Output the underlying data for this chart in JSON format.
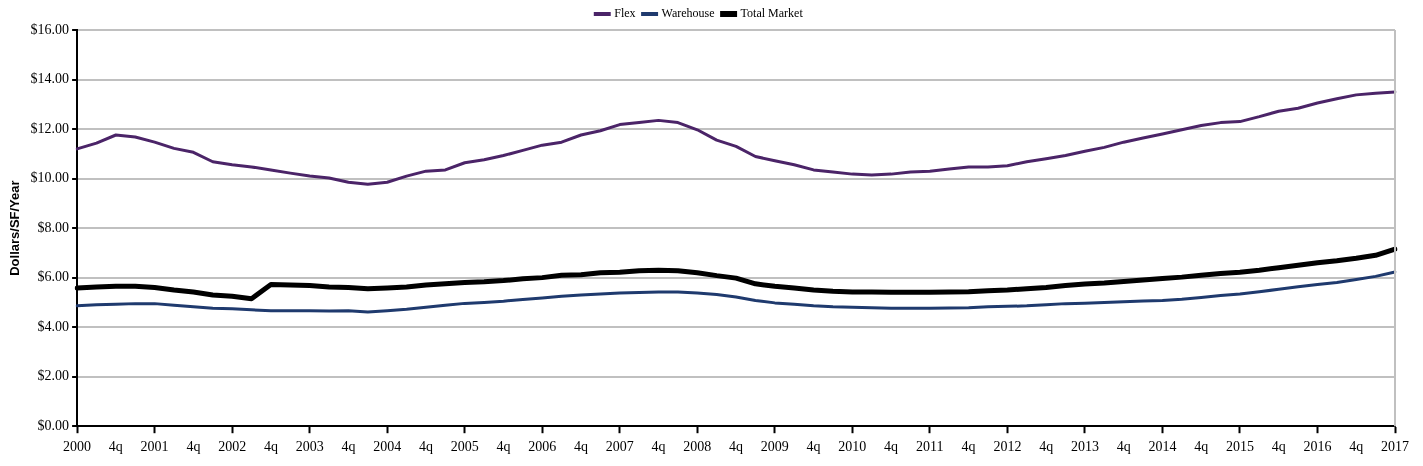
{
  "chart_data": {
    "type": "line",
    "ylabel": "Dollars/SF/Year",
    "categories": [
      "2000",
      null,
      "4q",
      null,
      "2001",
      null,
      "4q",
      null,
      "2002",
      null,
      "4q",
      null,
      "2003",
      null,
      "4q",
      null,
      "2004",
      null,
      "4q",
      null,
      "2005",
      null,
      "4q",
      null,
      "2006",
      null,
      "4q",
      null,
      "2007",
      null,
      "4q",
      null,
      "2008",
      null,
      "4q",
      null,
      "2009",
      null,
      "4q",
      null,
      "2010",
      null,
      "4q",
      null,
      "2011",
      null,
      "4q",
      null,
      "2012",
      null,
      "4q",
      null,
      "2013",
      null,
      "4q",
      null,
      "2014",
      null,
      "4q",
      null,
      "2015",
      null,
      "4q",
      null,
      "2016",
      null,
      "4q",
      null,
      "2017"
    ],
    "series": [
      {
        "name": "Flex",
        "color": "#4b2468",
        "values": [
          11.2,
          11.43,
          11.76,
          11.68,
          11.47,
          11.22,
          11.06,
          10.68,
          10.56,
          10.47,
          10.35,
          10.22,
          10.1,
          10.02,
          9.85,
          9.77,
          9.85,
          10.1,
          10.3,
          10.35,
          10.64,
          10.76,
          10.93,
          11.14,
          11.35,
          11.47,
          11.76,
          11.93,
          12.18,
          12.26,
          12.35,
          12.26,
          11.97,
          11.55,
          11.3,
          10.89,
          10.72,
          10.56,
          10.35,
          10.27,
          10.18,
          10.14,
          10.18,
          10.27,
          10.3,
          10.39,
          10.47,
          10.47,
          10.52,
          10.68,
          10.8,
          10.93,
          11.1,
          11.26,
          11.47,
          11.64,
          11.8,
          11.97,
          12.14,
          12.26,
          12.3,
          12.5,
          12.72,
          12.84,
          13.05,
          13.22,
          13.38,
          13.45,
          13.5
        ]
      },
      {
        "name": "Warehouse",
        "color": "#1f3a6e",
        "values": [
          4.86,
          4.9,
          4.92,
          4.95,
          4.95,
          4.88,
          4.82,
          4.76,
          4.74,
          4.7,
          4.66,
          4.66,
          4.66,
          4.65,
          4.66,
          4.61,
          4.66,
          4.72,
          4.8,
          4.88,
          4.96,
          5.0,
          5.05,
          5.12,
          5.18,
          5.25,
          5.3,
          5.34,
          5.38,
          5.4,
          5.42,
          5.42,
          5.38,
          5.32,
          5.22,
          5.08,
          4.98,
          4.92,
          4.86,
          4.82,
          4.8,
          4.78,
          4.76,
          4.76,
          4.76,
          4.77,
          4.78,
          4.82,
          4.84,
          4.86,
          4.9,
          4.95,
          4.97,
          5.0,
          5.03,
          5.06,
          5.08,
          5.13,
          5.2,
          5.28,
          5.34,
          5.43,
          5.53,
          5.63,
          5.72,
          5.8,
          5.92,
          6.05,
          6.23
        ]
      },
      {
        "name": "Total Market",
        "color": "#000000",
        "values": [
          5.58,
          5.62,
          5.65,
          5.65,
          5.6,
          5.5,
          5.42,
          5.3,
          5.25,
          5.15,
          5.72,
          5.7,
          5.68,
          5.62,
          5.6,
          5.55,
          5.58,
          5.62,
          5.7,
          5.75,
          5.8,
          5.83,
          5.88,
          5.95,
          6.0,
          6.1,
          6.12,
          6.2,
          6.22,
          6.28,
          6.3,
          6.28,
          6.2,
          6.08,
          5.98,
          5.75,
          5.65,
          5.58,
          5.5,
          5.45,
          5.42,
          5.42,
          5.41,
          5.41,
          5.41,
          5.42,
          5.43,
          5.47,
          5.5,
          5.55,
          5.6,
          5.68,
          5.74,
          5.78,
          5.84,
          5.9,
          5.96,
          6.02,
          6.1,
          6.17,
          6.22,
          6.3,
          6.4,
          6.5,
          6.6,
          6.68,
          6.78,
          6.9,
          7.15
        ]
      }
    ],
    "ylim": [
      0,
      16
    ],
    "yticks": [
      {
        "value": 0,
        "label": "$0.00"
      },
      {
        "value": 2,
        "label": "$2.00"
      },
      {
        "value": 4,
        "label": "$4.00"
      },
      {
        "value": 6,
        "label": "$6.00"
      },
      {
        "value": 8,
        "label": "$8.00"
      },
      {
        "value": 10,
        "label": "$10.00"
      },
      {
        "value": 12,
        "label": "$12.00"
      },
      {
        "value": 14,
        "label": "$14.00"
      },
      {
        "value": 16,
        "label": "$16.00"
      }
    ],
    "grid": "y",
    "legend": "top",
    "marker": "none",
    "line_style": "solid"
  }
}
